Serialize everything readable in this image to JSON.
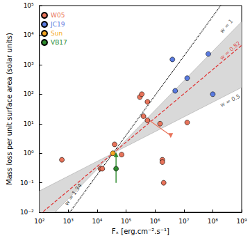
{
  "chart_data": {
    "type": "scatter",
    "xlabel": "Fₓ [erg.cm⁻².s⁻¹]",
    "ylabel": "Mass loss per unit surface area (solar units)",
    "log": true,
    "grid": false,
    "legend": "upper left",
    "xlim": [
      100,
      1000000000
    ],
    "ylim": [
      0.01,
      100000
    ],
    "xticks": [
      {
        "value": 100,
        "label": "10²"
      },
      {
        "value": 1000,
        "label": "10³"
      },
      {
        "value": 10000,
        "label": "10⁴"
      },
      {
        "value": 100000,
        "label": "10⁵"
      },
      {
        "value": 1000000,
        "label": "10⁶"
      },
      {
        "value": 10000000,
        "label": "10⁷"
      },
      {
        "value": 100000000,
        "label": "10⁸"
      },
      {
        "value": 1000000000,
        "label": "10⁹"
      }
    ],
    "yticks": [
      {
        "value": 0.01,
        "label": "10⁻²"
      },
      {
        "value": 0.1,
        "label": "10⁻¹"
      },
      {
        "value": 1,
        "label": "10⁰"
      },
      {
        "value": 10,
        "label": "10¹"
      },
      {
        "value": 100,
        "label": "10²"
      },
      {
        "value": 1000,
        "label": "10³"
      },
      {
        "value": 10000,
        "label": "10⁴"
      },
      {
        "value": 100000,
        "label": "10⁵"
      }
    ],
    "series": [
      {
        "name": "W05",
        "color": "#e8735a",
        "marker": "circle",
        "x": [
          600,
          13000,
          15000,
          40000,
          70000,
          300000,
          350000,
          400000,
          550000,
          550000,
          1500000,
          1800000,
          1800000,
          2000000,
          13000000
        ],
        "values": [
          0.6,
          0.3,
          0.3,
          2,
          0.9,
          80,
          100,
          18,
          55,
          13,
          10,
          0.6,
          0.5,
          0.1,
          11
        ]
      },
      {
        "name": "JC19",
        "color": "#5a7be0",
        "marker": "circle",
        "x": [
          4000000,
          5000000,
          13000000,
          70000000,
          100000000
        ],
        "values": [
          1500,
          130,
          350,
          2300,
          100
        ]
      },
      {
        "name": "Sun",
        "color": "#f5a623",
        "marker": "circle",
        "x": [
          35000
        ],
        "values": [
          1
        ]
      },
      {
        "name": "VB17",
        "color": "#2e8b2e",
        "marker": "circle",
        "x": [
          45000
        ],
        "values": [
          0.3
        ],
        "error_low": [
          0.1
        ],
        "error_high": [
          0.9
        ]
      }
    ],
    "lines": [
      {
        "color": "#000000",
        "line_style": "dotted",
        "x": [
          100,
          1000000000
        ],
        "values": [
          0.00039,
          935000
        ]
      },
      {
        "color": "#e03030",
        "line_style": "dashed",
        "x": [
          100,
          1000000000
        ],
        "values": [
          0.0082,
          4500
        ]
      }
    ],
    "band": {
      "color": "#d0d0d0",
      "x": [
        100,
        35000,
        1000000000
      ],
      "upper": [
        0.053,
        1,
        28600
      ],
      "lower": [
        0.0029,
        1,
        169
      ]
    },
    "arrows": [
      {
        "color": "#e8735a",
        "marker": "triangle-down",
        "x": [
          400000,
          3500000
        ],
        "values": [
          18,
          4
        ]
      }
    ],
    "annotations": [
      {
        "text": "w = 1.34",
        "color": "#000000",
        "x": 1500,
        "y": 0.04
      },
      {
        "text": "w = 1",
        "color": "#333333",
        "x": 300000000,
        "y": 20000
      },
      {
        "text": "w = 0.82",
        "color": "#e03030",
        "x": 400000000,
        "y": 3000
      },
      {
        "text": "w = 0.5",
        "color": "#333333",
        "x": 400000000,
        "y": 60
      }
    ]
  }
}
